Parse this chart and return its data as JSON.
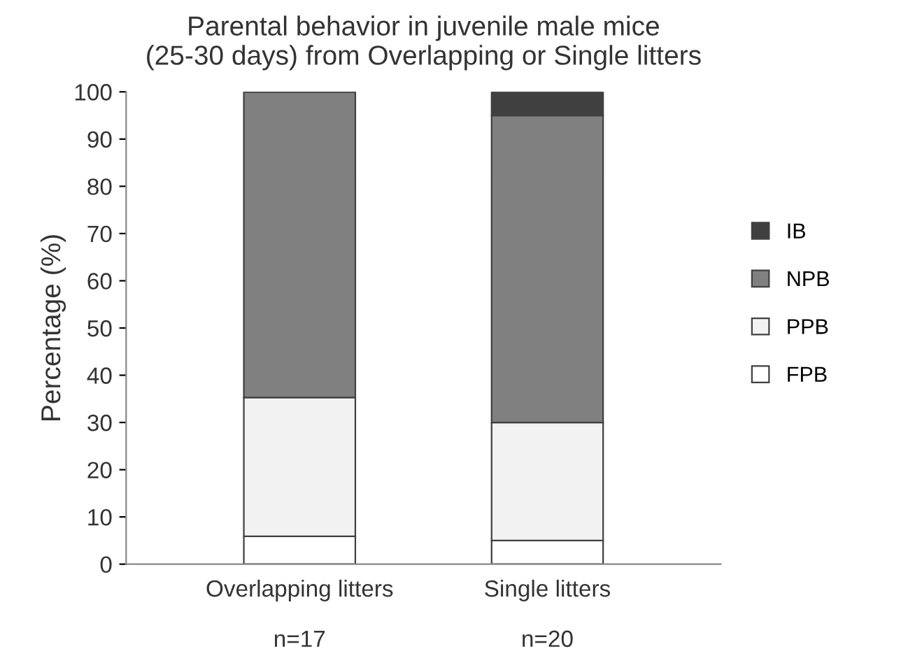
{
  "chart_data": {
    "type": "bar",
    "stacked": true,
    "title": "Parental behavior in juvenile male mice\n(25-30 days) from Overlapping or Single litters",
    "ylabel": "Percentage (%)",
    "categories": [
      "Overlapping litters\n\nn=17",
      "Single litters\n\nn=20"
    ],
    "series": [
      {
        "name": "FPB",
        "color": "#ffffff",
        "values": [
          5.9,
          5
        ]
      },
      {
        "name": "PPB",
        "color": "#f2f2f2",
        "values": [
          29.4,
          25
        ]
      },
      {
        "name": "NPB",
        "color": "#808080",
        "values": [
          64.7,
          65
        ]
      },
      {
        "name": "IB",
        "color": "#404040",
        "values": [
          0,
          5
        ]
      }
    ],
    "ylim": [
      0,
      100
    ],
    "yticks": [
      0,
      10,
      20,
      30,
      40,
      50,
      60,
      70,
      80,
      90,
      100
    ],
    "grid": false,
    "legend": "right"
  }
}
